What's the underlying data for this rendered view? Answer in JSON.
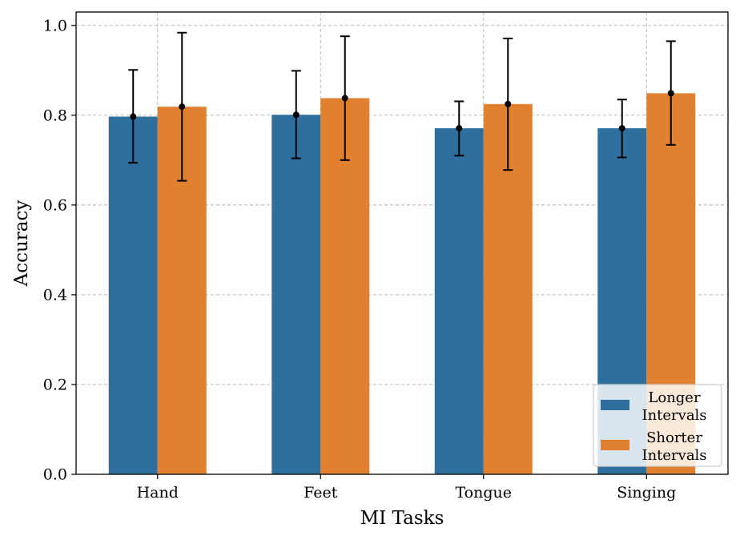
{
  "chart_data": {
    "type": "bar",
    "title": "",
    "xlabel": "MI Tasks",
    "ylabel": "Accuracy",
    "categories": [
      "Hand",
      "Feet",
      "Tongue",
      "Singing"
    ],
    "ylim": [
      0,
      1.03
    ],
    "yticks": [
      0.0,
      0.2,
      0.4,
      0.6,
      0.8,
      1.0
    ],
    "ytick_labels": [
      "0.0",
      "0.2",
      "0.4",
      "0.6",
      "0.8",
      "1.0"
    ],
    "grid": true,
    "legend_position": "bottom-right",
    "series": [
      {
        "name": "Longer Intervals",
        "legend_lines": [
          "Longer",
          "Intervals"
        ],
        "color": "#2e6f9e",
        "values": [
          0.797,
          0.801,
          0.771,
          0.771
        ],
        "error_low": [
          0.694,
          0.704,
          0.71,
          0.706
        ],
        "error_high": [
          0.901,
          0.899,
          0.831,
          0.835
        ]
      },
      {
        "name": "Shorter Intervals",
        "legend_lines": [
          "Shorter",
          "Intervals"
        ],
        "color": "#e1802e",
        "values": [
          0.819,
          0.838,
          0.825,
          0.849
        ],
        "error_low": [
          0.654,
          0.7,
          0.678,
          0.734
        ],
        "error_high": [
          0.984,
          0.976,
          0.971,
          0.965
        ]
      }
    ]
  }
}
